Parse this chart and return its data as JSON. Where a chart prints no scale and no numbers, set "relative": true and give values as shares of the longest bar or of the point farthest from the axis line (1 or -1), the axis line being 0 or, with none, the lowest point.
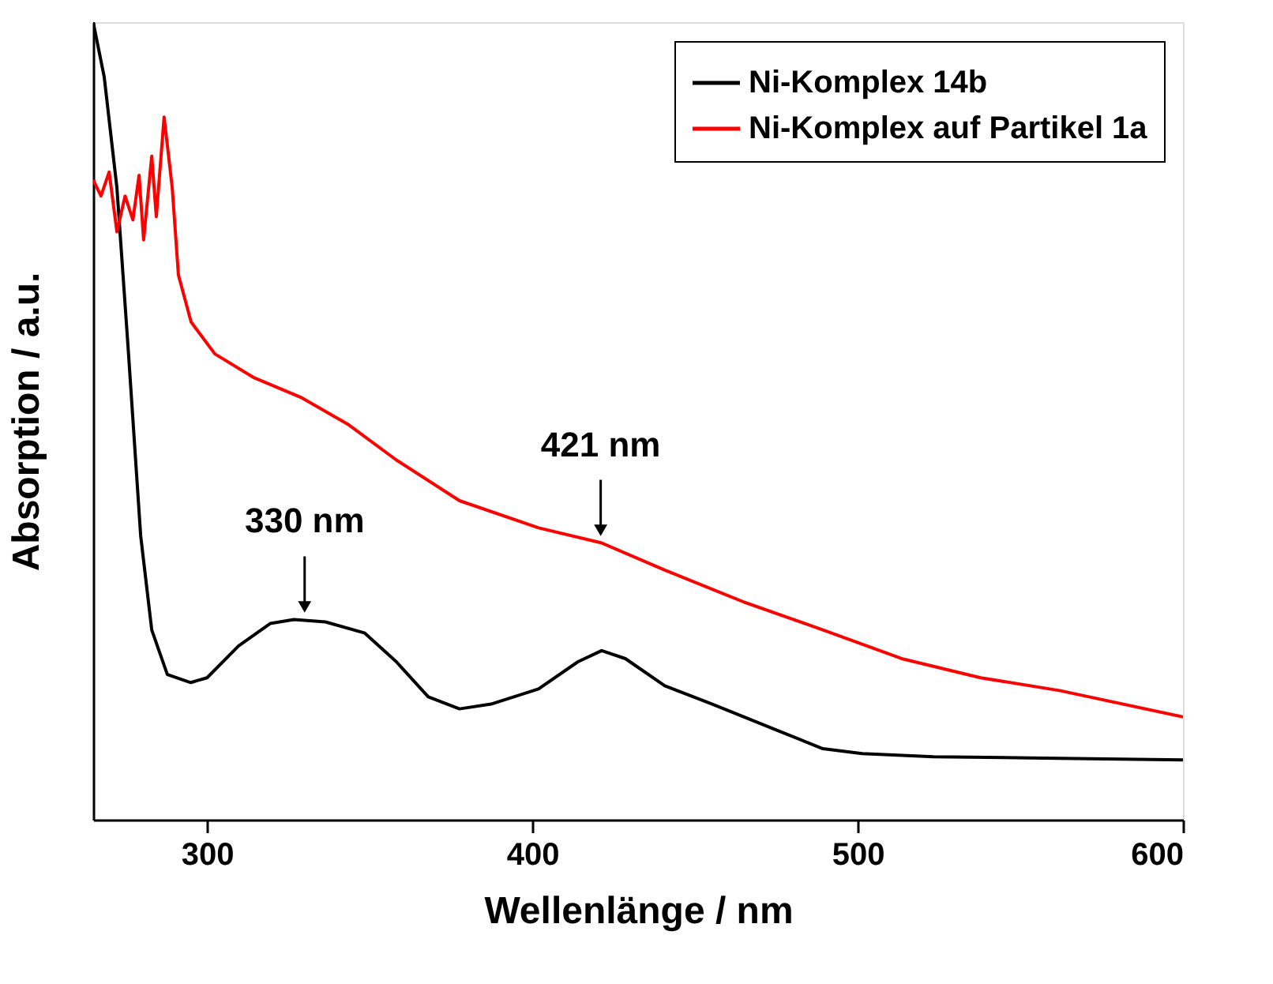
{
  "chart_data": {
    "type": "line",
    "xlabel": "Wellenlänge / nm",
    "ylabel": "Absorption / a.u.",
    "relative": true,
    "xlim": [
      265,
      600
    ],
    "xticks": [
      300,
      400,
      500,
      600
    ],
    "tick_labels": "x",
    "legend": "top right",
    "grid": false,
    "marker": "none",
    "line_style": "solid",
    "series": [
      {
        "name": "Ni-Komplex 14b",
        "color": "#000000",
        "x": [
          265,
          268.4,
          272.3,
          275.7,
          279.6,
          283,
          287.8,
          295,
          300,
          309.7,
          319.4,
          326.7,
          336.4,
          348.5,
          358.2,
          368,
          377.6,
          387.3,
          401.9,
          414,
          421.3,
          428.6,
          440.7,
          455.3,
          474.7,
          489.3,
          501.4,
          523.3,
          562,
          600
        ],
        "values": [
          1.0,
          0.931,
          0.792,
          0.594,
          0.356,
          0.238,
          0.182,
          0.172,
          0.178,
          0.218,
          0.246,
          0.251,
          0.248,
          0.234,
          0.198,
          0.154,
          0.139,
          0.145,
          0.164,
          0.198,
          0.212,
          0.202,
          0.168,
          0.145,
          0.113,
          0.089,
          0.083,
          0.079,
          0.077,
          0.075
        ]
      },
      {
        "name": "Ni-Komplex auf Partikel 1a",
        "color": "#ff0000",
        "x": [
          265,
          267.4,
          269.9,
          272.3,
          274.8,
          277.2,
          279.1,
          280.5,
          283,
          284.4,
          286.8,
          289.3,
          291.2,
          295.1,
          302.4,
          314.5,
          329.1,
          343.6,
          358.2,
          377.6,
          401.9,
          421.3,
          440.7,
          465,
          489.3,
          513.5,
          537.8,
          562,
          600
        ],
        "values": [
          0.802,
          0.782,
          0.812,
          0.737,
          0.782,
          0.752,
          0.808,
          0.727,
          0.832,
          0.756,
          0.881,
          0.792,
          0.683,
          0.624,
          0.584,
          0.554,
          0.529,
          0.495,
          0.451,
          0.4,
          0.366,
          0.347,
          0.313,
          0.273,
          0.238,
          0.202,
          0.178,
          0.162,
          0.129
        ]
      }
    ],
    "annotations": [
      {
        "text": "330 nm",
        "x": 330,
        "y": 0.251
      },
      {
        "text": "421 nm",
        "x": 421,
        "y": 0.347
      }
    ]
  }
}
